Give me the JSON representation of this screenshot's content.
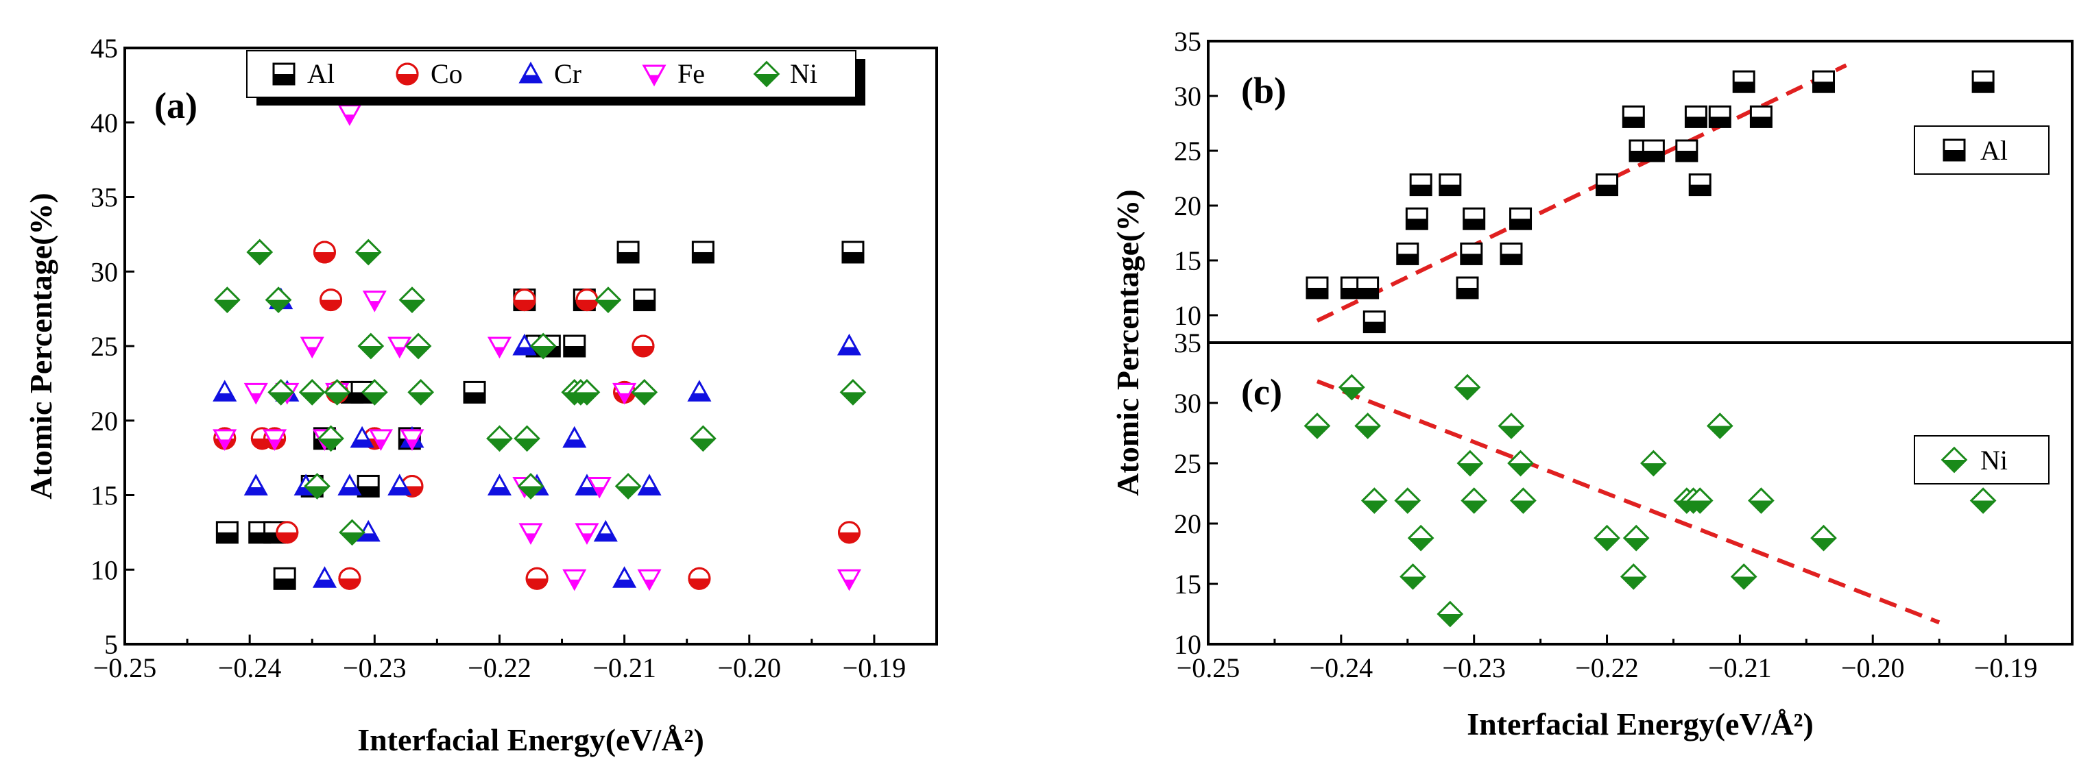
{
  "chart_data": [
    {
      "panel": "(a)",
      "type": "scatter",
      "xlabel": "Interfacial Energy(eV/Å²)",
      "ylabel": "Atomic Percentage(%)",
      "xlim": [
        -0.25,
        -0.185
      ],
      "ylim": [
        5,
        45
      ],
      "xticks": [
        -0.25,
        -0.24,
        -0.23,
        -0.22,
        -0.21,
        -0.2,
        -0.19
      ],
      "xtick_labels": [
        "−0.25",
        "−0.24",
        "−0.23",
        "−0.22",
        "−0.21",
        "−0.20",
        "−0.19"
      ],
      "yticks": [
        5,
        10,
        15,
        20,
        25,
        30,
        35,
        40,
        45
      ],
      "ytick_labels": [
        "5",
        "10",
        "15",
        "20",
        "25",
        "30",
        "35",
        "40",
        "45"
      ],
      "legend": [
        "Al",
        "Co",
        "Cr",
        "Fe",
        "Ni"
      ],
      "series": [
        {
          "name": "Al",
          "marker": "square-half",
          "color": "#000000",
          "x": [
            -0.2418,
            -0.2392,
            -0.238,
            -0.2372,
            -0.235,
            -0.234,
            -0.2318,
            -0.231,
            -0.2305,
            -0.2272,
            -0.222,
            -0.218,
            -0.217,
            -0.216,
            -0.214,
            -0.2132,
            -0.2097,
            -0.2084,
            -0.2037,
            -0.1917
          ],
          "y": [
            12.5,
            12.5,
            12.5,
            9.4,
            15.6,
            18.8,
            21.9,
            21.9,
            15.6,
            18.8,
            21.9,
            28.1,
            25.0,
            25.0,
            25.0,
            28.1,
            31.3,
            28.1,
            31.3,
            31.3
          ]
        },
        {
          "name": "Co",
          "marker": "circle-half",
          "color": "#e01010",
          "x": [
            -0.242,
            -0.239,
            -0.238,
            -0.237,
            -0.234,
            -0.2335,
            -0.233,
            -0.232,
            -0.23,
            -0.227,
            -0.218,
            -0.217,
            -0.213,
            -0.21,
            -0.2085,
            -0.204,
            -0.192
          ],
          "y": [
            18.8,
            18.8,
            18.8,
            12.5,
            31.3,
            28.1,
            21.9,
            9.4,
            18.8,
            15.6,
            28.1,
            9.4,
            28.1,
            21.9,
            25.0,
            9.4,
            12.5
          ]
        },
        {
          "name": "Cr",
          "marker": "triangle-up-half",
          "color": "#1010e0",
          "x": [
            -0.242,
            -0.2395,
            -0.2375,
            -0.237,
            -0.2355,
            -0.234,
            -0.232,
            -0.231,
            -0.2305,
            -0.228,
            -0.227,
            -0.22,
            -0.218,
            -0.217,
            -0.214,
            -0.213,
            -0.2115,
            -0.21,
            -0.208,
            -0.204,
            -0.192
          ],
          "y": [
            21.9,
            15.6,
            28.1,
            21.9,
            15.6,
            9.4,
            15.6,
            18.8,
            12.5,
            15.6,
            18.8,
            15.6,
            25.0,
            15.6,
            18.8,
            15.6,
            12.5,
            9.4,
            15.6,
            21.9,
            25.0
          ]
        },
        {
          "name": "Fe",
          "marker": "triangle-down-half",
          "color": "#ff00ff",
          "x": [
            -0.242,
            -0.2395,
            -0.238,
            -0.237,
            -0.235,
            -0.234,
            -0.233,
            -0.232,
            -0.23,
            -0.2295,
            -0.228,
            -0.227,
            -0.22,
            -0.218,
            -0.2175,
            -0.214,
            -0.213,
            -0.212,
            -0.21,
            -0.208,
            -0.192
          ],
          "y": [
            18.8,
            21.9,
            18.8,
            21.9,
            25.0,
            18.8,
            21.9,
            40.6,
            28.1,
            18.8,
            25.0,
            18.8,
            25.0,
            15.6,
            12.5,
            9.4,
            12.5,
            15.6,
            21.9,
            9.4,
            9.4
          ]
        },
        {
          "name": "Ni",
          "marker": "diamond-half",
          "color": "#1a8a1a",
          "x": [
            -0.2418,
            -0.2392,
            -0.2377,
            -0.2375,
            -0.235,
            -0.2346,
            -0.2335,
            -0.233,
            -0.2318,
            -0.2305,
            -0.2303,
            -0.23,
            -0.227,
            -0.2265,
            -0.2263,
            -0.22,
            -0.2178,
            -0.2175,
            -0.2165,
            -0.214,
            -0.2135,
            -0.213,
            -0.2113,
            -0.2097,
            -0.2084,
            -0.2037,
            -0.1917
          ],
          "y": [
            28.1,
            31.3,
            28.1,
            21.9,
            21.9,
            15.6,
            18.8,
            21.9,
            12.5,
            31.3,
            25.0,
            21.9,
            28.1,
            25.0,
            21.9,
            18.8,
            18.8,
            15.6,
            25.0,
            21.9,
            21.9,
            21.9,
            28.1,
            15.6,
            21.9,
            18.8,
            21.9
          ]
        }
      ]
    },
    {
      "panel": "(b)",
      "type": "scatter",
      "xlabel": "",
      "ylabel": "Atomic Percentage(%)",
      "xlim": [
        -0.25,
        -0.185
      ],
      "ylim": [
        7.5,
        35
      ],
      "yticks": [
        10,
        15,
        20,
        25,
        30,
        35
      ],
      "ytick_labels": [
        "10",
        "15",
        "20",
        "25",
        "30",
        "35"
      ],
      "legend": [
        "Al"
      ],
      "series": [
        {
          "name": "Al",
          "marker": "square-half",
          "color": "#000000",
          "x": [
            -0.2418,
            -0.2392,
            -0.238,
            -0.2375,
            -0.235,
            -0.2343,
            -0.234,
            -0.2318,
            -0.2305,
            -0.2302,
            -0.23,
            -0.2272,
            -0.2265,
            -0.22,
            -0.218,
            -0.2175,
            -0.2165,
            -0.214,
            -0.2133,
            -0.213,
            -0.2115,
            -0.2097,
            -0.2084,
            -0.2037,
            -0.1917
          ],
          "y": [
            12.5,
            12.5,
            12.5,
            9.4,
            15.6,
            18.8,
            21.9,
            21.9,
            12.5,
            15.6,
            18.8,
            15.6,
            18.8,
            21.9,
            28.1,
            25.0,
            25.0,
            25.0,
            28.1,
            21.9,
            28.1,
            31.3,
            28.1,
            31.3,
            31.3
          ]
        }
      ],
      "trendline": {
        "x": [
          -0.2418,
          -0.202
        ],
        "y": [
          9.5,
          32.8
        ],
        "color": "#e02020",
        "style": "dashed"
      }
    },
    {
      "panel": "(c)",
      "type": "scatter",
      "xlabel": "Interfacial Energy(eV/Å²)",
      "ylabel": "Atomic Percentage(%)",
      "xlim": [
        -0.25,
        -0.185
      ],
      "ylim": [
        10,
        35
      ],
      "xticks": [
        -0.25,
        -0.24,
        -0.23,
        -0.22,
        -0.21,
        -0.2,
        -0.19
      ],
      "xtick_labels": [
        "−0.25",
        "−0.24",
        "−0.23",
        "−0.22",
        "−0.21",
        "−0.20",
        "−0.19"
      ],
      "yticks": [
        10,
        15,
        20,
        25,
        30,
        35
      ],
      "ytick_labels": [
        "10",
        "15",
        "20",
        "25",
        "30",
        "35"
      ],
      "legend": [
        "Ni"
      ],
      "series": [
        {
          "name": "Ni",
          "marker": "diamond-half",
          "color": "#1a8a1a",
          "x": [
            -0.2418,
            -0.2392,
            -0.238,
            -0.2375,
            -0.235,
            -0.2346,
            -0.234,
            -0.2318,
            -0.2305,
            -0.2303,
            -0.23,
            -0.2272,
            -0.2265,
            -0.2263,
            -0.22,
            -0.218,
            -0.2178,
            -0.2165,
            -0.214,
            -0.2135,
            -0.213,
            -0.2115,
            -0.2097,
            -0.2084,
            -0.2037,
            -0.1917
          ],
          "y": [
            28.1,
            31.3,
            28.1,
            21.9,
            21.9,
            15.6,
            18.8,
            12.5,
            31.3,
            25.0,
            21.9,
            28.1,
            25.0,
            21.9,
            18.8,
            15.6,
            18.8,
            25.0,
            21.9,
            21.9,
            21.9,
            28.1,
            15.6,
            21.9,
            18.8,
            21.9
          ]
        }
      ],
      "trendline": {
        "x": [
          -0.2418,
          -0.195
        ],
        "y": [
          31.8,
          11.8
        ],
        "color": "#e02020",
        "style": "dashed"
      }
    }
  ]
}
